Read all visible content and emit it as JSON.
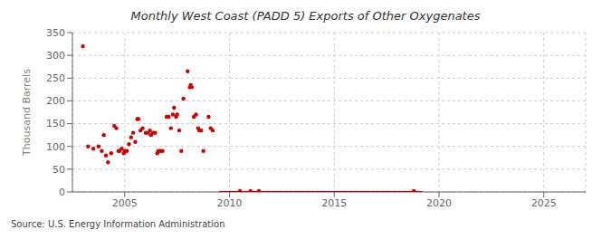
{
  "chart_data": {
    "type": "scatter",
    "title": "Monthly West Coast (PADD 5) Exports of Other Oxygenates",
    "ylabel": "Thousand Barrels",
    "annotation": "Source: U.S. Energy Information Administration",
    "xlim": [
      2002.5,
      2027
    ],
    "xticks": [
      2005,
      2010,
      2015,
      2020,
      2025
    ],
    "ylim": [
      0,
      350
    ],
    "yticks": [
      0,
      50,
      100,
      150,
      200,
      250,
      300,
      350
    ],
    "grid": true,
    "series": [
      {
        "type": "scatter",
        "color": "#cc0000",
        "marker": "circle",
        "x": [
          2003.0,
          2003.25,
          2003.5,
          2003.75,
          2003.9,
          2004.0,
          2004.1,
          2004.2,
          2004.35,
          2004.5,
          2004.6,
          2004.7,
          2004.75,
          2004.85,
          2004.95,
          2005.0,
          2005.1,
          2005.2,
          2005.3,
          2005.4,
          2005.5,
          2005.6,
          2005.65,
          2005.75,
          2005.85,
          2006.0,
          2006.1,
          2006.2,
          2006.25,
          2006.35,
          2006.45,
          2006.55,
          2006.6,
          2006.7,
          2006.8,
          2007.0,
          2007.1,
          2007.2,
          2007.3,
          2007.35,
          2007.45,
          2007.5,
          2007.6,
          2007.7,
          2007.8,
          2008.0,
          2008.1,
          2008.15,
          2008.2,
          2008.3,
          2008.4,
          2008.5,
          2008.55,
          2008.65,
          2008.75,
          2009.0,
          2009.1,
          2009.2
        ],
        "values": [
          320,
          100,
          95,
          100,
          90,
          125,
          80,
          65,
          85,
          145,
          140,
          90,
          90,
          95,
          85,
          90,
          90,
          105,
          120,
          130,
          110,
          160,
          160,
          135,
          140,
          130,
          130,
          135,
          125,
          130,
          130,
          85,
          90,
          90,
          90,
          165,
          165,
          140,
          170,
          185,
          165,
          170,
          135,
          90,
          205,
          265,
          230,
          235,
          230,
          165,
          170,
          140,
          135,
          135,
          90,
          165,
          140,
          135
        ]
      },
      {
        "type": "line",
        "color": "#cc0000",
        "line_style": "solid",
        "x": [
          2009.5,
          2019.2
        ],
        "values": [
          0,
          0
        ]
      },
      {
        "type": "scatter",
        "color": "#cc0000",
        "marker": "circle",
        "x": [
          2010.5,
          2011.0,
          2011.4,
          2018.8
        ],
        "values": [
          2,
          2,
          2,
          2
        ]
      }
    ]
  }
}
